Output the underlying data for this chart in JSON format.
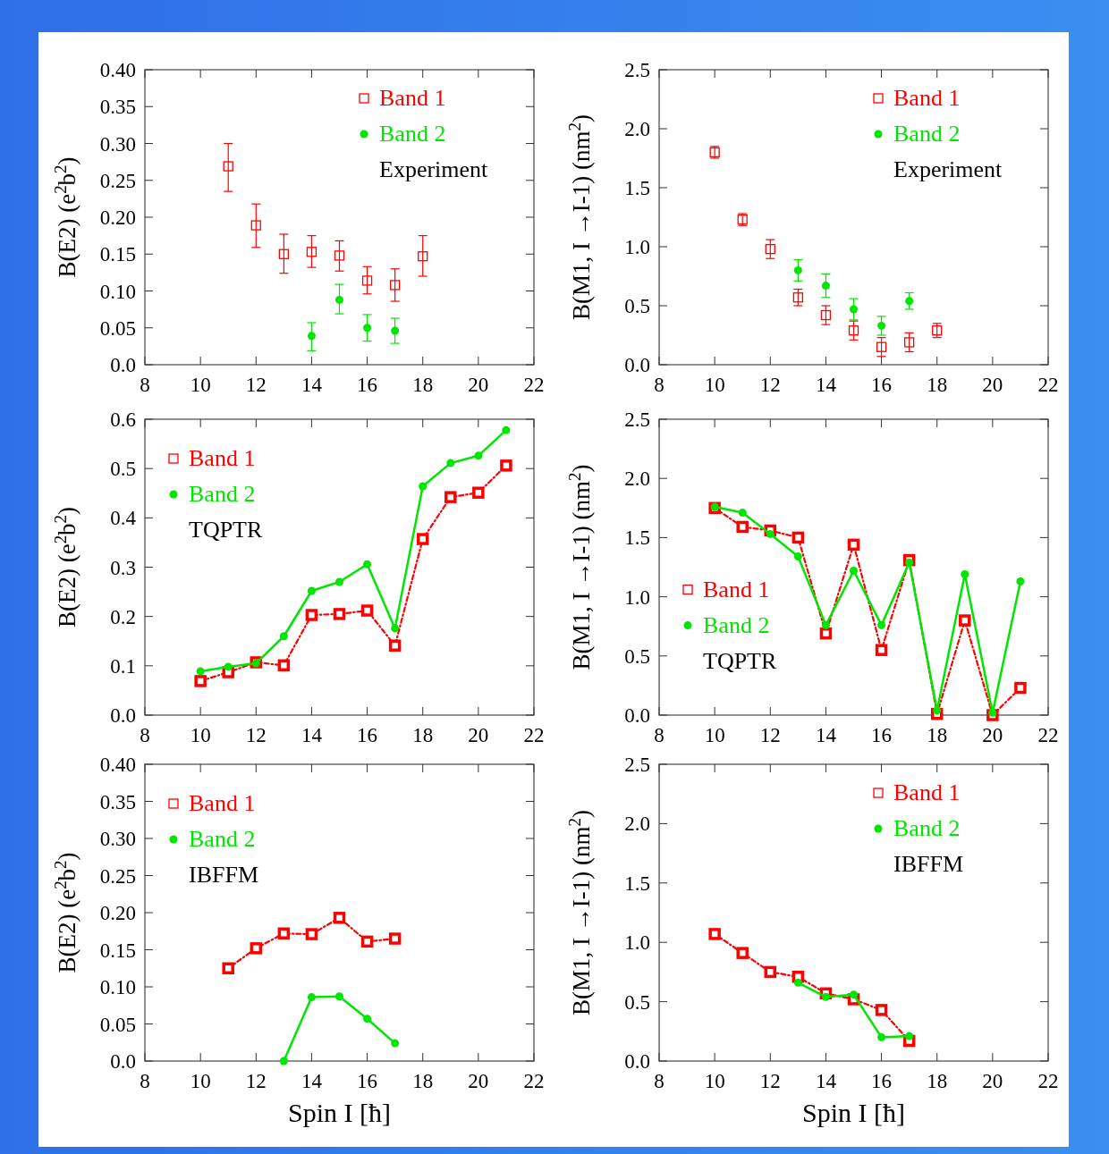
{
  "chart_data": [
    {
      "type": "scatter",
      "ylabel": "B(E2) (e$^{2}$b$^{2}$)",
      "x": [
        11,
        12,
        13,
        14,
        15,
        16,
        17,
        18
      ],
      "xlim": [
        8,
        22
      ],
      "xticks": [
        8,
        10,
        12,
        14,
        16,
        18,
        20,
        22
      ],
      "ylim": [
        0,
        0.4
      ],
      "yticks": [
        {
          "value": 0,
          "label": "0.0"
        },
        0.05,
        {
          "value": 0.1,
          "label": "0.10"
        },
        0.15,
        {
          "value": 0.2,
          "label": "0.20"
        },
        0.25,
        {
          "value": 0.3,
          "label": "0.30"
        },
        0.35,
        {
          "value": 0.4,
          "label": "0.40"
        }
      ],
      "legend": "top right",
      "annotations": [
        "Experiment"
      ],
      "series": [
        {
          "name": "Band 1",
          "color": "#ff0000",
          "marker": "square",
          "values": [
            0.269,
            0.189,
            0.15,
            0.153,
            0.148,
            0.114,
            0.108,
            0.147
          ],
          "errors": [
            [
              0.235,
              0.3
            ],
            [
              0.159,
              0.218
            ],
            [
              0.124,
              0.177
            ],
            [
              0.132,
              0.175
            ],
            [
              0.127,
              0.168
            ],
            [
              0.096,
              0.133
            ],
            [
              0.086,
              0.13
            ],
            [
              0.12,
              0.175
            ]
          ]
        },
        {
          "name": "Band 2",
          "color": "#00e600",
          "marker": "circle",
          "x": [
            14,
            15,
            16,
            17
          ],
          "values": [
            0.039,
            0.088,
            0.05,
            0.046
          ],
          "errors": [
            [
              0.019,
              0.057
            ],
            [
              0.069,
              0.109
            ],
            [
              0.032,
              0.068
            ],
            [
              0.029,
              0.063
            ]
          ]
        }
      ]
    },
    {
      "type": "scatter",
      "ylabel": "B(M1, I →I-1) (nm$^{2}$)",
      "x": [
        10,
        11,
        12,
        13,
        14,
        15,
        16,
        17,
        18
      ],
      "xlim": [
        8,
        22
      ],
      "xticks": [
        8,
        10,
        12,
        14,
        16,
        18,
        20,
        22
      ],
      "ylim": [
        0,
        2.5
      ],
      "yticks": [
        {
          "value": 0,
          "label": "0.0"
        },
        0.5,
        {
          "value": 1,
          "label": "1.0"
        },
        1.5,
        {
          "value": 2,
          "label": "2.0"
        },
        2.5
      ],
      "legend": "top right",
      "annotations": [
        "Experiment"
      ],
      "series": [
        {
          "name": "Band 1",
          "color": "#ff0000",
          "marker": "square",
          "values": [
            1.8,
            1.23,
            0.98,
            0.57,
            0.42,
            0.29,
            0.15,
            0.19,
            0.29
          ],
          "errors": [
            0.05,
            0.05,
            0.08,
            0.07,
            0.08,
            0.08,
            0.08,
            0.08,
            0.06
          ]
        },
        {
          "name": "Band 2",
          "color": "#00e600",
          "marker": "circle",
          "x": [
            13,
            14,
            15,
            16,
            17
          ],
          "values": [
            0.8,
            0.67,
            0.47,
            0.33,
            0.54
          ],
          "errors": [
            0.09,
            0.1,
            0.09,
            0.08,
            0.07
          ]
        }
      ]
    },
    {
      "type": "line",
      "ylabel": "B(E2) (e$^{2}$b$^{2}$)",
      "x": [
        10,
        11,
        12,
        13,
        14,
        15,
        16,
        17,
        18,
        19,
        20,
        21
      ],
      "xlim": [
        8,
        22
      ],
      "xticks": [
        8,
        10,
        12,
        14,
        16,
        18,
        20,
        22
      ],
      "ylim": [
        0,
        0.6
      ],
      "yticks": [
        {
          "value": 0,
          "label": "0.0"
        },
        0.1,
        0.2,
        0.3,
        0.4,
        0.5,
        0.6
      ],
      "legend": "top left",
      "annotations": [
        "TQPTR"
      ],
      "series": [
        {
          "name": "Band 1",
          "color": "#ff0000",
          "marker": "square",
          "line_style": "dashed",
          "values": [
            0.069,
            0.087,
            0.107,
            0.101,
            0.203,
            0.205,
            0.212,
            0.141,
            0.357,
            0.442,
            0.451,
            0.506
          ]
        },
        {
          "name": "Band 2",
          "color": "#00e600",
          "marker": "circle",
          "line_style": "solid",
          "values": [
            0.089,
            0.098,
            0.105,
            0.16,
            0.252,
            0.27,
            0.306,
            0.176,
            0.464,
            0.511,
            0.526,
            0.578
          ]
        }
      ]
    },
    {
      "type": "line",
      "ylabel": "B(M1, I →I-1) (nm$^{2}$)",
      "x": [
        10,
        11,
        12,
        13,
        14,
        15,
        16,
        17,
        18,
        19,
        20,
        21
      ],
      "xlim": [
        8,
        22
      ],
      "xticks": [
        8,
        10,
        12,
        14,
        16,
        18,
        20,
        22
      ],
      "ylim": [
        0,
        2.5
      ],
      "yticks": [
        {
          "value": 0,
          "label": "0.0"
        },
        0.5,
        {
          "value": 1,
          "label": "1.0"
        },
        1.5,
        {
          "value": 2,
          "label": "2.0"
        },
        2.5
      ],
      "legend": "left",
      "annotations": [
        "TQPTR"
      ],
      "series": [
        {
          "name": "Band 1",
          "color": "#ff0000",
          "marker": "square",
          "line_style": "dashed",
          "values": [
            1.75,
            1.59,
            1.56,
            1.5,
            0.69,
            1.44,
            0.55,
            1.31,
            0.01,
            0.8,
            0.0,
            0.23
          ]
        },
        {
          "name": "Band 2",
          "color": "#00e600",
          "marker": "circle",
          "line_style": "solid",
          "values": [
            1.76,
            1.71,
            1.53,
            1.34,
            0.76,
            1.22,
            0.76,
            1.29,
            0.04,
            1.19,
            0.02,
            1.13
          ]
        }
      ]
    },
    {
      "type": "line",
      "xlabel": "Spin I [ħ]",
      "ylabel": "B(E2) (e$^{2}$b$^{2}$)",
      "x": [
        11,
        12,
        13,
        14,
        15,
        16,
        17
      ],
      "xlim": [
        8,
        22
      ],
      "xticks": [
        8,
        10,
        12,
        14,
        16,
        18,
        20,
        22
      ],
      "ylim": [
        0,
        0.4
      ],
      "yticks": [
        {
          "value": 0,
          "label": "0.0"
        },
        0.05,
        {
          "value": 0.1,
          "label": "0.10"
        },
        0.15,
        {
          "value": 0.2,
          "label": "0.20"
        },
        0.25,
        {
          "value": 0.3,
          "label": "0.30"
        },
        0.35,
        {
          "value": 0.4,
          "label": "0.40"
        }
      ],
      "legend": "top left",
      "annotations": [
        "IBFFM"
      ],
      "series": [
        {
          "name": "Band 1",
          "color": "#ff0000",
          "marker": "square",
          "line_style": "dashed",
          "values": [
            0.125,
            0.152,
            0.172,
            0.171,
            0.193,
            0.161,
            0.165
          ]
        },
        {
          "name": "Band 2",
          "color": "#00e600",
          "marker": "circle",
          "line_style": "solid",
          "x": [
            13,
            14,
            15,
            16,
            17
          ],
          "values": [
            0.0,
            0.086,
            0.087,
            0.057,
            0.024
          ]
        }
      ]
    },
    {
      "type": "line",
      "xlabel": "Spin I [ħ]",
      "ylabel": "B(M1, I →I-1) (nm$^{2}$)",
      "x": [
        10,
        11,
        12,
        13,
        14,
        15,
        16,
        17
      ],
      "xlim": [
        8,
        22
      ],
      "xticks": [
        8,
        10,
        12,
        14,
        16,
        18,
        20,
        22
      ],
      "ylim": [
        0,
        2.5
      ],
      "yticks": [
        {
          "value": 0,
          "label": "0.0"
        },
        0.5,
        {
          "value": 1,
          "label": "1.0"
        },
        1.5,
        {
          "value": 2,
          "label": "2.0"
        },
        2.5
      ],
      "legend": "top right",
      "annotations": [
        "IBFFM"
      ],
      "series": [
        {
          "name": "Band 1",
          "color": "#ff0000",
          "marker": "square",
          "line_style": "dashed",
          "values": [
            1.07,
            0.91,
            0.75,
            0.71,
            0.57,
            0.52,
            0.43,
            0.17
          ]
        },
        {
          "name": "Band 2",
          "color": "#00e600",
          "marker": "circle",
          "line_style": "solid",
          "x": [
            13,
            14,
            15,
            16,
            17
          ],
          "values": [
            0.66,
            0.54,
            0.56,
            0.2,
            0.21
          ]
        }
      ]
    }
  ]
}
